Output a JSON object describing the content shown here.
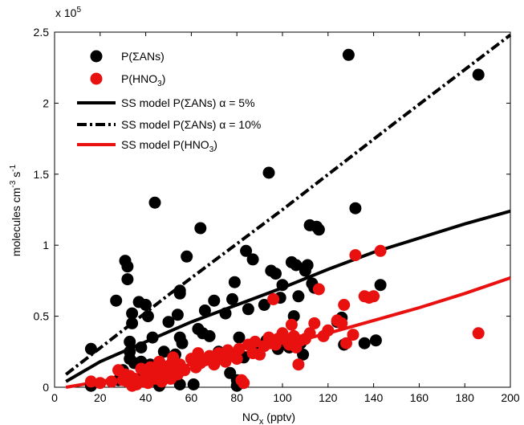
{
  "chart_data": {
    "type": "scatter",
    "title": "",
    "xlabel": "NO",
    "xlabel_sub": "x",
    "xlabel_unit": " (pptv)",
    "ylabel": "molecules cm",
    "ylabel_sup1": "-3",
    "ylabel_mid": " s",
    "ylabel_sup2": "-1",
    "y_multiplier_label": "x 10",
    "y_multiplier_exp": "5",
    "xlim": [
      0,
      200
    ],
    "ylim": [
      0,
      2.5
    ],
    "grid": false,
    "legend_position": "top-left",
    "x_ticks": [
      "0",
      "20",
      "40",
      "60",
      "80",
      "100",
      "120",
      "140",
      "160",
      "180",
      "200"
    ],
    "y_ticks": [
      "0",
      "0.5",
      "1",
      "1.5",
      "2",
      "2.5"
    ],
    "x_tick_values": [
      0,
      20,
      40,
      60,
      80,
      100,
      120,
      140,
      160,
      180,
      200
    ],
    "y_tick_values": [
      0,
      0.5,
      1,
      1.5,
      2,
      2.5
    ],
    "series": [
      {
        "name": "P(ΣANs)",
        "kind": "scatter",
        "color": "#000000",
        "points": [
          [
            16,
            0.27
          ],
          [
            16,
            0.01
          ],
          [
            27,
            0.61
          ],
          [
            28,
            0.05
          ],
          [
            30,
            0.12
          ],
          [
            31,
            0.89
          ],
          [
            32,
            0.85
          ],
          [
            32,
            0.76
          ],
          [
            33,
            0.25
          ],
          [
            33,
            0.32
          ],
          [
            33,
            0.2
          ],
          [
            34,
            0.52
          ],
          [
            34,
            0.45
          ],
          [
            35,
            0.02
          ],
          [
            35,
            0.17
          ],
          [
            37,
            0.6
          ],
          [
            38,
            0.28
          ],
          [
            38,
            0.18
          ],
          [
            38,
            0.06
          ],
          [
            40,
            0.58
          ],
          [
            41,
            0.5
          ],
          [
            42,
            0.08
          ],
          [
            42,
            0.16
          ],
          [
            43,
            0.35
          ],
          [
            44,
            1.3
          ],
          [
            45,
            0.13
          ],
          [
            46,
            0.01
          ],
          [
            48,
            0.25
          ],
          [
            50,
            0.46
          ],
          [
            52,
            0.19
          ],
          [
            53,
            0.23
          ],
          [
            54,
            0.51
          ],
          [
            55,
            0.66
          ],
          [
            55,
            0.68
          ],
          [
            55,
            0.35
          ],
          [
            55,
            0.02
          ],
          [
            56,
            0.31
          ],
          [
            58,
            0.92
          ],
          [
            61,
            0.02
          ],
          [
            63,
            0.41
          ],
          [
            64,
            1.12
          ],
          [
            65,
            0.38
          ],
          [
            66,
            0.54
          ],
          [
            68,
            0.36
          ],
          [
            70,
            0.61
          ],
          [
            72,
            0.25
          ],
          [
            74,
            0.23
          ],
          [
            75,
            0.52
          ],
          [
            77,
            0.1
          ],
          [
            78,
            0.62
          ],
          [
            79,
            0.74
          ],
          [
            80,
            0.05
          ],
          [
            80,
            0.01
          ],
          [
            81,
            0.35
          ],
          [
            83,
            0.21
          ],
          [
            84,
            0.96
          ],
          [
            85,
            0.55
          ],
          [
            87,
            0.9
          ],
          [
            88,
            0.31
          ],
          [
            92,
            0.58
          ],
          [
            93,
            0.33
          ],
          [
            94,
            1.51
          ],
          [
            95,
            0.82
          ],
          [
            97,
            0.8
          ],
          [
            98,
            0.27
          ],
          [
            99,
            0.63
          ],
          [
            100,
            0.72
          ],
          [
            103,
            0.28
          ],
          [
            104,
            0.88
          ],
          [
            105,
            0.5
          ],
          [
            106,
            0.86
          ],
          [
            107,
            0.64
          ],
          [
            108,
            0.31
          ],
          [
            109,
            0.23
          ],
          [
            110,
            0.82
          ],
          [
            111,
            0.86
          ],
          [
            112,
            1.14
          ],
          [
            113,
            0.73
          ],
          [
            114,
            0.7
          ],
          [
            115,
            1.13
          ],
          [
            116,
            1.11
          ],
          [
            124,
            0.46
          ],
          [
            126,
            0.49
          ],
          [
            127,
            0.3
          ],
          [
            129,
            2.34
          ],
          [
            132,
            1.26
          ],
          [
            136,
            0.31
          ],
          [
            141,
            0.33
          ],
          [
            143,
            0.72
          ],
          [
            186,
            2.2
          ]
        ]
      },
      {
        "name": "P(HNO",
        "name_sub": "3",
        "name_end": ")",
        "kind": "scatter",
        "color": "#e8110f",
        "points": [
          [
            16,
            0.04
          ],
          [
            20,
            0.03
          ],
          [
            25,
            0.04
          ],
          [
            28,
            0.12
          ],
          [
            30,
            0.05
          ],
          [
            31,
            0.09
          ],
          [
            32,
            0.04
          ],
          [
            33,
            0.08
          ],
          [
            34,
            0.01
          ],
          [
            35,
            0.06
          ],
          [
            36,
            0.02
          ],
          [
            38,
            0.04
          ],
          [
            38,
            0.13
          ],
          [
            40,
            0.08
          ],
          [
            41,
            0.03
          ],
          [
            42,
            0.14
          ],
          [
            43,
            0.11
          ],
          [
            44,
            0.06
          ],
          [
            45,
            0.1
          ],
          [
            46,
            0.18
          ],
          [
            47,
            0.04
          ],
          [
            48,
            0.12
          ],
          [
            49,
            0.09
          ],
          [
            50,
            0.15
          ],
          [
            51,
            0.06
          ],
          [
            52,
            0.21
          ],
          [
            53,
            0.13
          ],
          [
            54,
            0.09
          ],
          [
            55,
            0.16
          ],
          [
            57,
            0.12
          ],
          [
            60,
            0.2
          ],
          [
            62,
            0.14
          ],
          [
            63,
            0.24
          ],
          [
            64,
            0.17
          ],
          [
            66,
            0.19
          ],
          [
            68,
            0.22
          ],
          [
            70,
            0.16
          ],
          [
            72,
            0.24
          ],
          [
            73,
            0.2
          ],
          [
            75,
            0.18
          ],
          [
            76,
            0.26
          ],
          [
            78,
            0.22
          ],
          [
            80,
            0.2
          ],
          [
            81,
            0.27
          ],
          [
            82,
            0.05
          ],
          [
            83,
            0.03
          ],
          [
            85,
            0.3
          ],
          [
            87,
            0.24
          ],
          [
            88,
            0.32
          ],
          [
            90,
            0.23
          ],
          [
            92,
            0.29
          ],
          [
            94,
            0.35
          ],
          [
            95,
            0.31
          ],
          [
            96,
            0.62
          ],
          [
            97,
            0.3
          ],
          [
            98,
            0.34
          ],
          [
            100,
            0.38
          ],
          [
            102,
            0.33
          ],
          [
            103,
            0.3
          ],
          [
            104,
            0.44
          ],
          [
            105,
            0.36
          ],
          [
            106,
            0.28
          ],
          [
            107,
            0.16
          ],
          [
            108,
            0.33
          ],
          [
            110,
            0.34
          ],
          [
            112,
            0.38
          ],
          [
            114,
            0.45
          ],
          [
            116,
            0.69
          ],
          [
            118,
            0.36
          ],
          [
            120,
            0.4
          ],
          [
            124,
            0.47
          ],
          [
            126,
            0.45
          ],
          [
            127,
            0.58
          ],
          [
            128,
            0.31
          ],
          [
            131,
            0.37
          ],
          [
            132,
            0.93
          ],
          [
            136,
            0.64
          ],
          [
            138,
            0.63
          ],
          [
            140,
            0.64
          ],
          [
            143,
            0.96
          ],
          [
            186,
            0.38
          ]
        ]
      },
      {
        "name": "SS model P(ΣANs) α = 5%",
        "kind": "line",
        "style": "solid",
        "color": "#000000",
        "points": [
          [
            5,
            0.04
          ],
          [
            20,
            0.18
          ],
          [
            40,
            0.32
          ],
          [
            60,
            0.46
          ],
          [
            80,
            0.58
          ],
          [
            100,
            0.7
          ],
          [
            120,
            0.83
          ],
          [
            140,
            0.95
          ],
          [
            160,
            1.05
          ],
          [
            180,
            1.15
          ],
          [
            200,
            1.24
          ]
        ]
      },
      {
        "name": "SS model P(ΣANs) α = 10%",
        "kind": "line",
        "style": "dashdot",
        "color": "#000000",
        "points": [
          [
            5,
            0.09
          ],
          [
            50,
            0.65
          ],
          [
            100,
            1.25
          ],
          [
            150,
            1.87
          ],
          [
            200,
            2.48
          ]
        ]
      },
      {
        "name": "SS model P(HNO",
        "name_sub": "3",
        "name_end": ")",
        "kind": "line",
        "style": "solid",
        "color": "#e8110f",
        "points": [
          [
            5,
            0.0
          ],
          [
            20,
            0.04
          ],
          [
            40,
            0.1
          ],
          [
            60,
            0.16
          ],
          [
            80,
            0.23
          ],
          [
            100,
            0.3
          ],
          [
            120,
            0.38
          ],
          [
            140,
            0.47
          ],
          [
            160,
            0.56
          ],
          [
            180,
            0.66
          ],
          [
            200,
            0.77
          ]
        ]
      }
    ]
  }
}
